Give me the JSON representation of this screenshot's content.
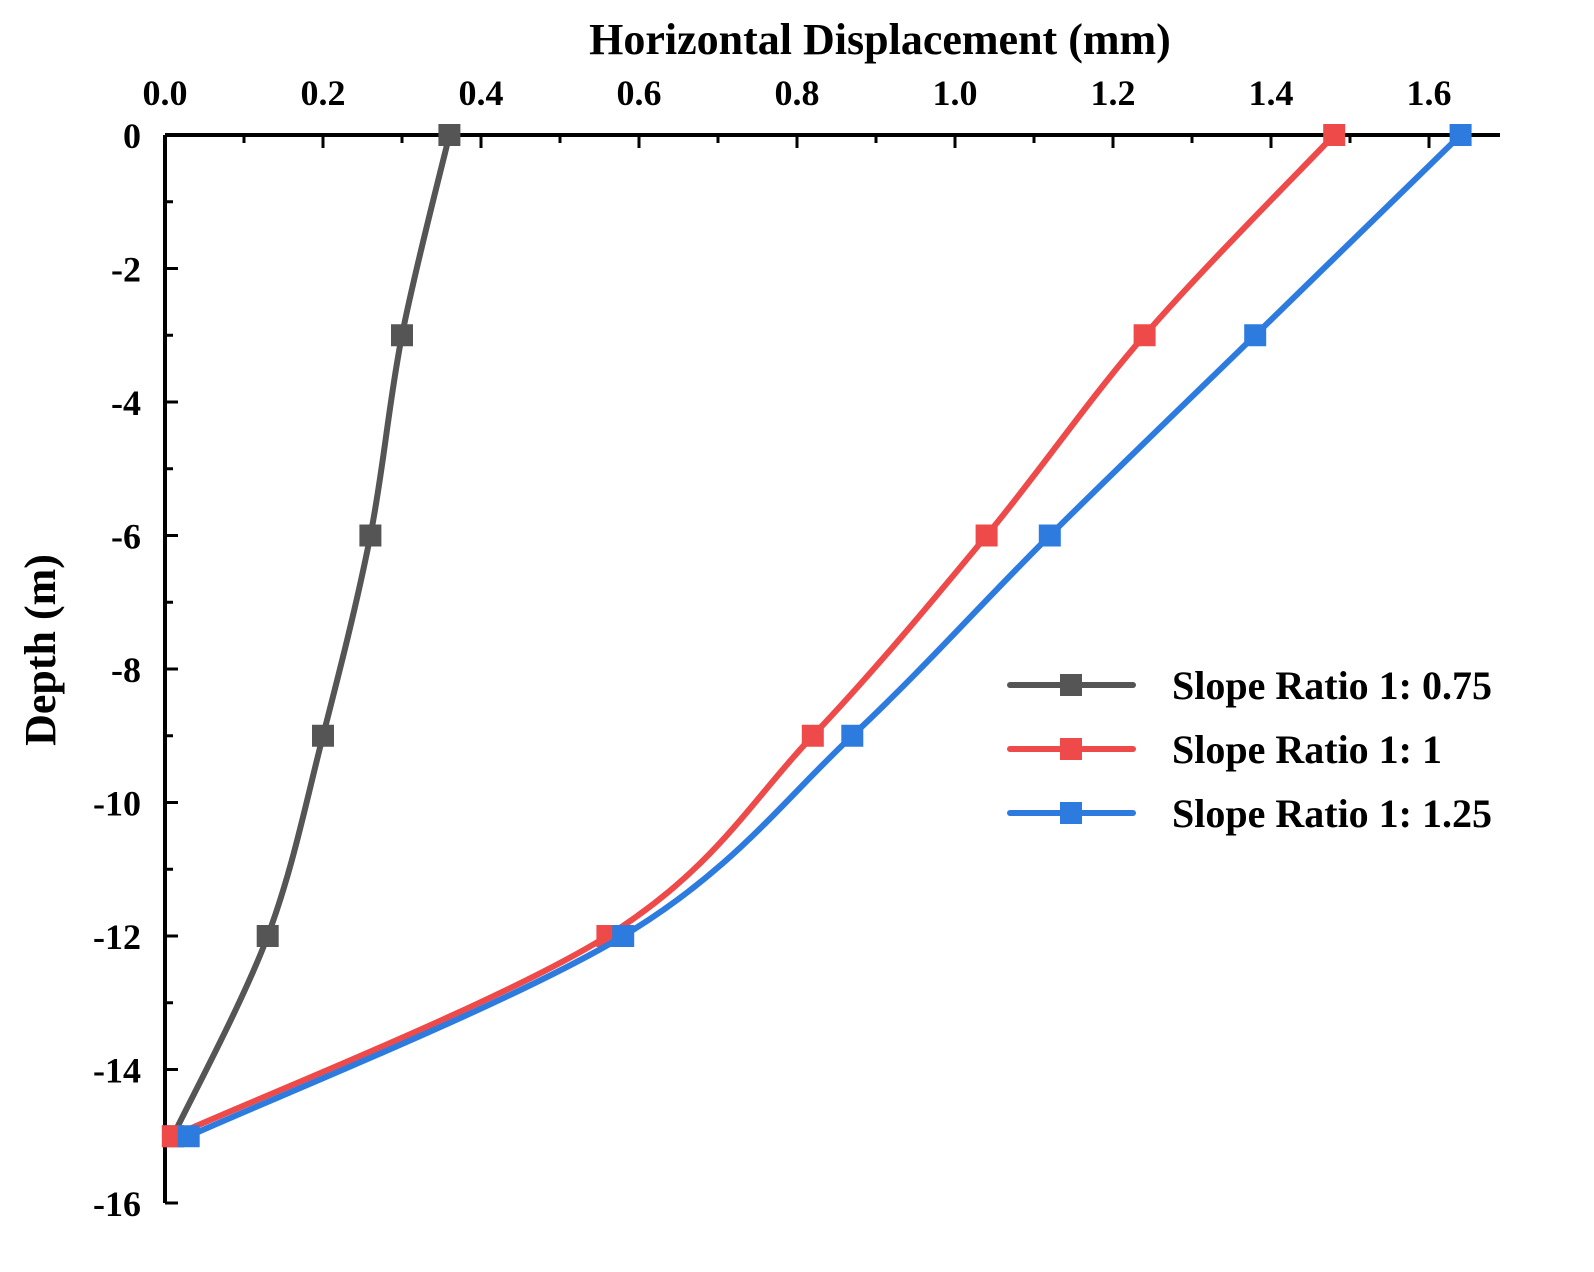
{
  "chart_data": {
    "type": "line",
    "title": "",
    "xlabel": "Horizontal Displacement (mm)",
    "ylabel": "Depth (m)",
    "xlim": [
      0.0,
      1.7
    ],
    "ylim": [
      -16,
      0
    ],
    "x_ticks": [
      0.0,
      0.2,
      0.4,
      0.6,
      0.8,
      1.0,
      1.2,
      1.4,
      1.6
    ],
    "x_tick_labels": [
      "0.0",
      "0.2",
      "0.4",
      "0.6",
      "0.8",
      "1.0",
      "1.2",
      "1.4",
      "1.6"
    ],
    "y_ticks": [
      0,
      -2,
      -4,
      -6,
      -8,
      -10,
      -12,
      -14,
      -16
    ],
    "y_tick_labels": [
      "0",
      "-2",
      "-4",
      "-6",
      "-8",
      "-10",
      "-12",
      "-14",
      "-16"
    ],
    "x_axis_position": "top",
    "grid": false,
    "legend_position": "right-middle",
    "series": [
      {
        "name": "Slope Ratio 1: 0.75",
        "color": "#555555",
        "marker": "square",
        "points": [
          [
            0.36,
            0
          ],
          [
            0.3,
            -3
          ],
          [
            0.26,
            -6
          ],
          [
            0.2,
            -9
          ],
          [
            0.13,
            -12
          ],
          [
            0.01,
            -15
          ]
        ]
      },
      {
        "name": "Slope Ratio 1: 1",
        "color": "#ee4a4a",
        "marker": "square",
        "points": [
          [
            1.48,
            0
          ],
          [
            1.24,
            -3
          ],
          [
            1.04,
            -6
          ],
          [
            0.82,
            -9
          ],
          [
            0.56,
            -12
          ],
          [
            0.01,
            -15
          ]
        ]
      },
      {
        "name": "Slope Ratio 1: 1.25",
        "color": "#2e7be0",
        "marker": "square",
        "points": [
          [
            1.64,
            0
          ],
          [
            1.38,
            -3
          ],
          [
            1.12,
            -6
          ],
          [
            0.87,
            -9
          ],
          [
            0.58,
            -12
          ],
          [
            0.03,
            -15
          ]
        ]
      }
    ]
  }
}
